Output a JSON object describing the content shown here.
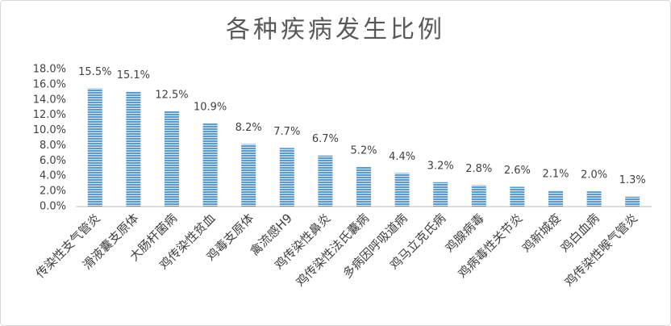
{
  "chart_data": {
    "type": "bar",
    "title": "各种疾病发生比例",
    "categories": [
      "传染性支气管炎",
      "滑液囊支原体",
      "大肠杆菌病",
      "鸡传染性贫血",
      "鸡毒支原体",
      "禽流感H9",
      "鸡传染性鼻炎",
      "鸡传染性法氏囊病",
      "多病因呼吸道病",
      "鸡马立克氏病",
      "鸡腺病毒",
      "鸡病毒性关节炎",
      "鸡新城疫",
      "鸡白血病",
      "鸡传染性喉气管炎"
    ],
    "values": [
      15.5,
      15.1,
      12.5,
      10.9,
      8.2,
      7.7,
      6.7,
      5.2,
      4.4,
      3.2,
      2.8,
      2.6,
      2.1,
      2.0,
      1.3
    ],
    "value_labels": [
      "15.5%",
      "15.1%",
      "12.5%",
      "10.9%",
      "8.2%",
      "7.7%",
      "6.7%",
      "5.2%",
      "4.4%",
      "3.2%",
      "2.8%",
      "2.6%",
      "2.1%",
      "2.0%",
      "1.3%"
    ],
    "color": "#5b9bd5",
    "ylim": [
      0,
      18
    ],
    "yticks": [
      {
        "value": 0,
        "label": "0.0%"
      },
      {
        "value": 2,
        "label": "2.0%"
      },
      {
        "value": 4,
        "label": "4.0%"
      },
      {
        "value": 6,
        "label": "6.0%"
      },
      {
        "value": 8,
        "label": "8.0%"
      },
      {
        "value": 10,
        "label": "10.0%"
      },
      {
        "value": 12,
        "label": "12.0%"
      },
      {
        "value": 14,
        "label": "14.0%"
      },
      {
        "value": 16,
        "label": "16.0%"
      },
      {
        "value": 18,
        "label": "18.0%"
      }
    ],
    "grid": false
  }
}
